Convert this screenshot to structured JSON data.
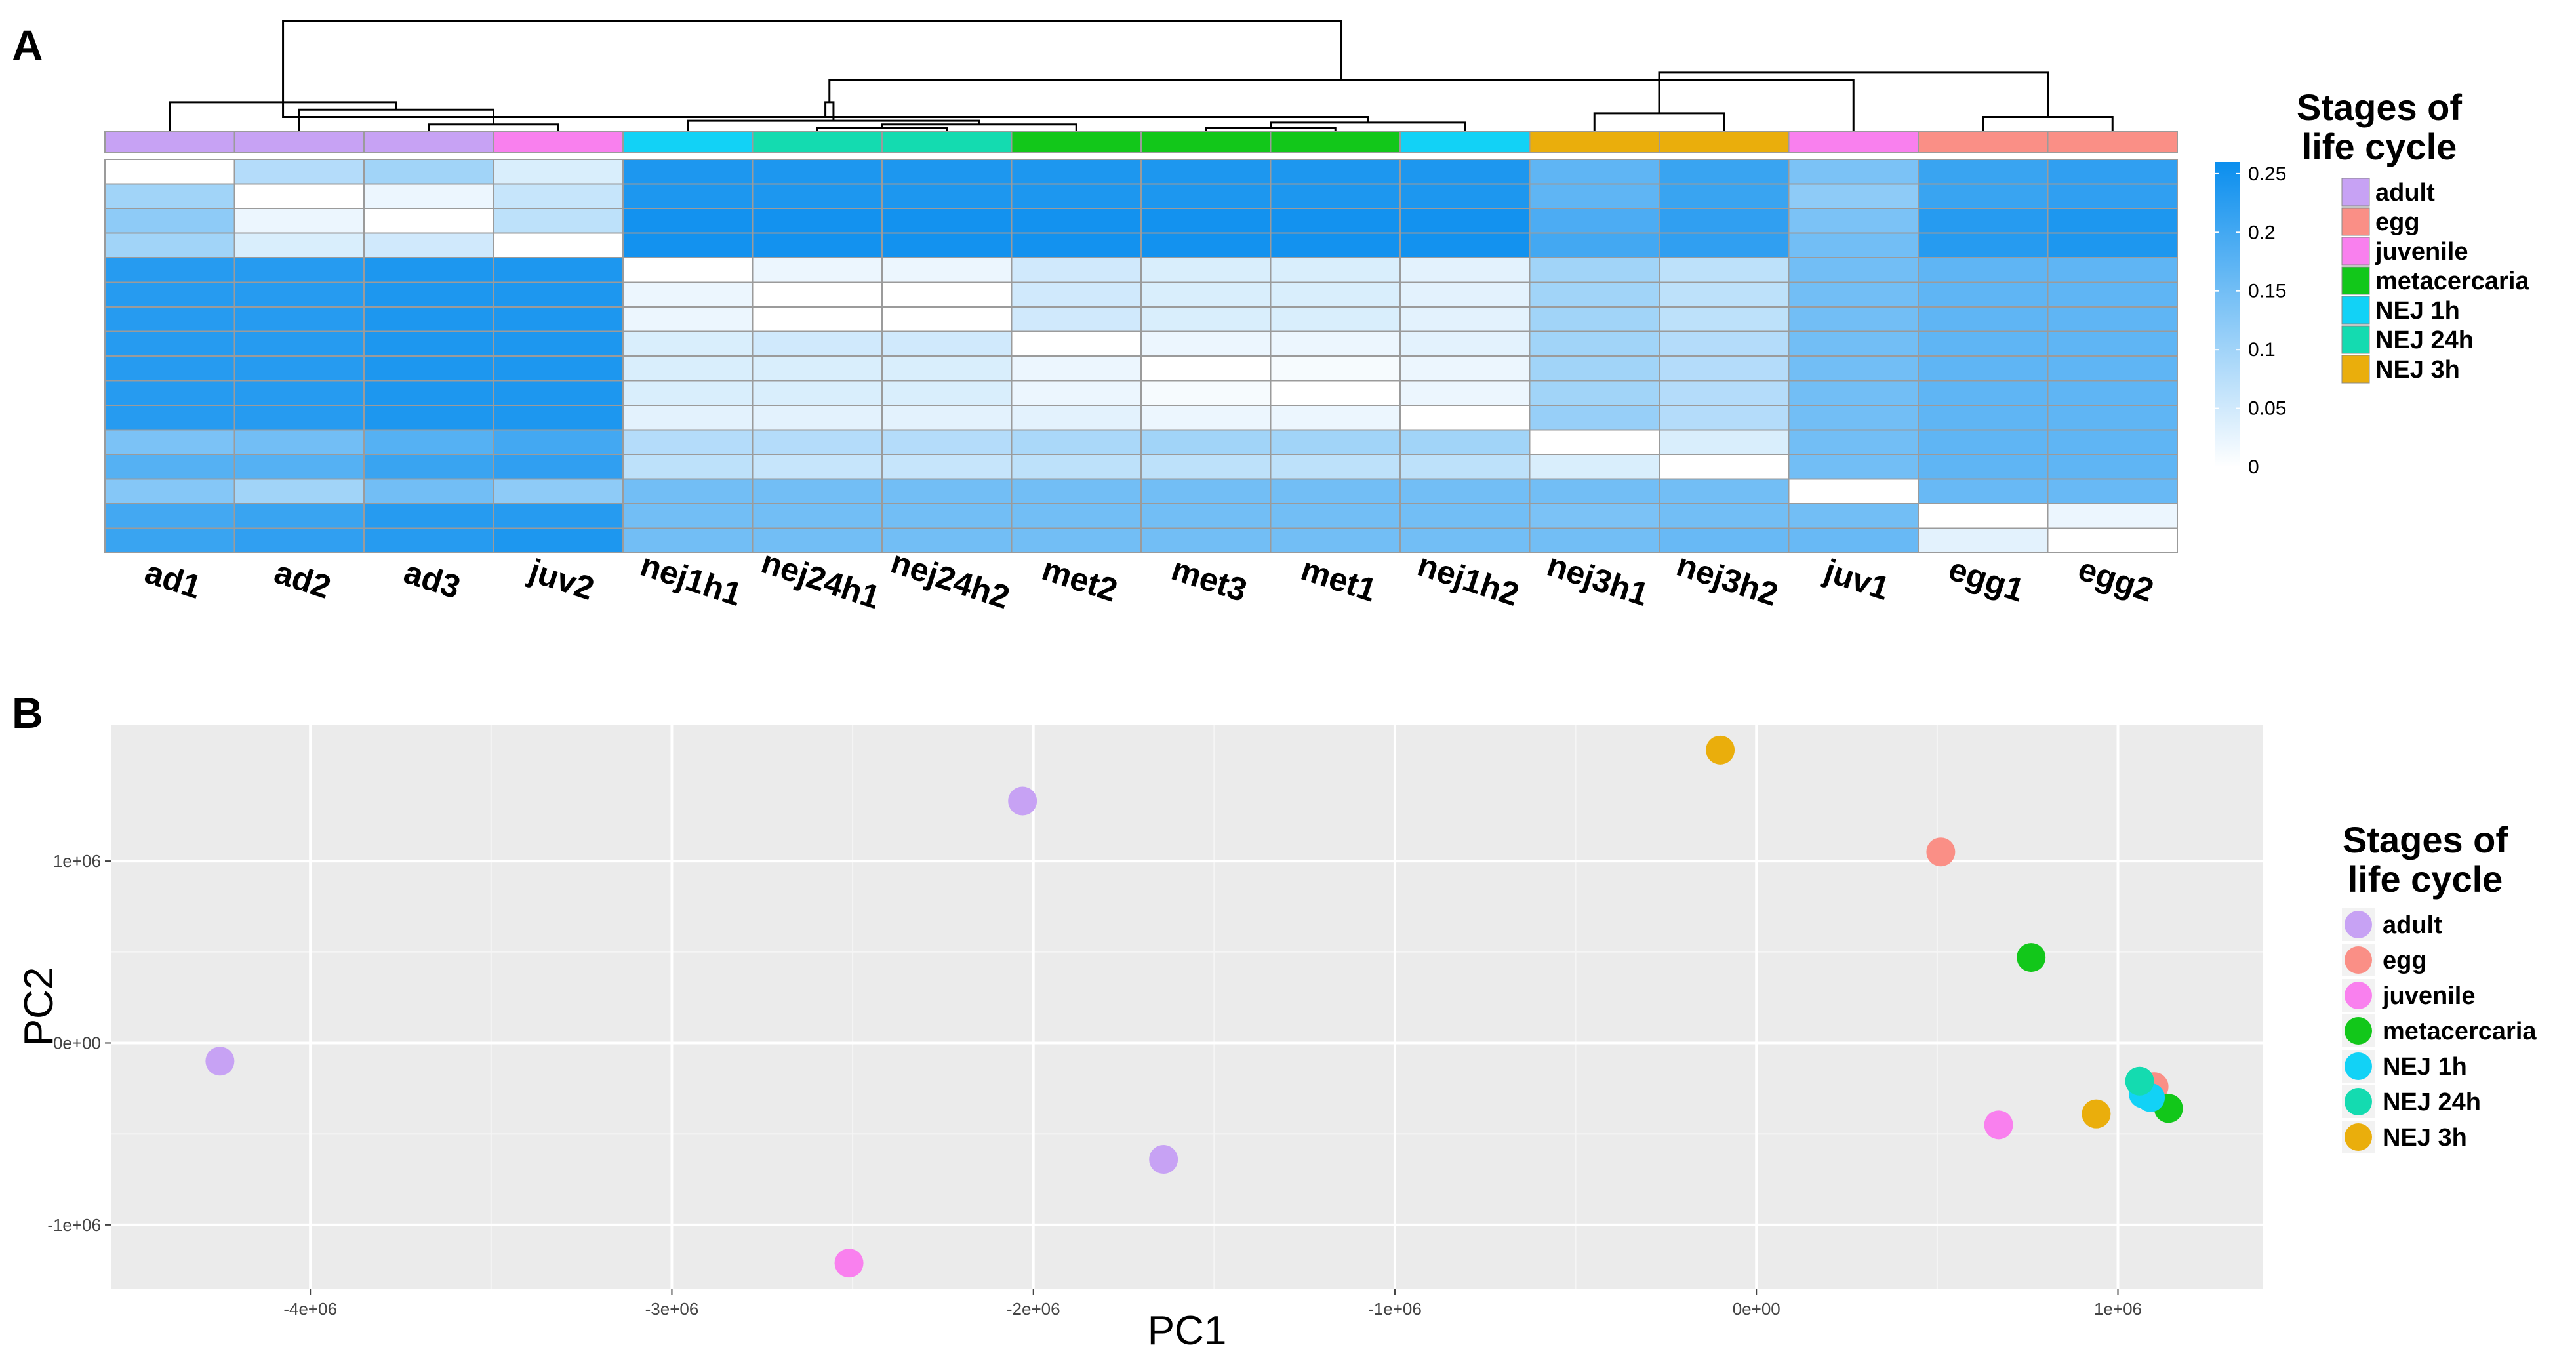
{
  "panel_a_label": "A",
  "panel_b_label": "B",
  "colors": {
    "adult": "#C7A2F4",
    "egg": "#FA8F86",
    "juvenile": "#F980EE",
    "metacercaria": "#12C71A",
    "NEJ 1h": "#12D2F6",
    "NEJ 24h": "#14DBB0",
    "NEJ 3h": "#EAAE0C"
  },
  "chart_data": [
    {
      "type": "heatmap",
      "columns": [
        "ad1",
        "ad2",
        "ad3",
        "juv2",
        "nej1h1",
        "nej24h1",
        "nej24h2",
        "met2",
        "met3",
        "met1",
        "nej1h2",
        "nej3h1",
        "nej3h2",
        "juv1",
        "egg1",
        "egg2"
      ],
      "column_stages": [
        "adult",
        "adult",
        "adult",
        "juvenile",
        "NEJ 1h",
        "NEJ 24h",
        "NEJ 24h",
        "metacercaria",
        "metacercaria",
        "metacercaria",
        "NEJ 1h",
        "NEJ 3h",
        "NEJ 3h",
        "juvenile",
        "egg",
        "egg"
      ],
      "matrix": [
        [
          0.0,
          0.08,
          0.1,
          0.04,
          0.24,
          0.24,
          0.24,
          0.24,
          0.24,
          0.24,
          0.24,
          0.17,
          0.21,
          0.14,
          0.21,
          0.22
        ],
        [
          0.1,
          0.0,
          0.02,
          0.06,
          0.24,
          0.24,
          0.24,
          0.24,
          0.24,
          0.24,
          0.24,
          0.17,
          0.21,
          0.12,
          0.21,
          0.22
        ],
        [
          0.12,
          0.02,
          0.0,
          0.07,
          0.25,
          0.25,
          0.25,
          0.25,
          0.25,
          0.25,
          0.25,
          0.19,
          0.22,
          0.14,
          0.23,
          0.24
        ],
        [
          0.1,
          0.04,
          0.05,
          0.0,
          0.25,
          0.25,
          0.25,
          0.25,
          0.25,
          0.25,
          0.25,
          0.2,
          0.22,
          0.15,
          0.23,
          0.24
        ],
        [
          0.23,
          0.23,
          0.24,
          0.24,
          0.0,
          0.02,
          0.02,
          0.05,
          0.04,
          0.04,
          0.03,
          0.1,
          0.07,
          0.15,
          0.17,
          0.17
        ],
        [
          0.23,
          0.23,
          0.24,
          0.24,
          0.02,
          0.0,
          0.0,
          0.05,
          0.04,
          0.04,
          0.03,
          0.1,
          0.07,
          0.15,
          0.17,
          0.17
        ],
        [
          0.23,
          0.23,
          0.24,
          0.24,
          0.02,
          0.0,
          0.0,
          0.05,
          0.04,
          0.04,
          0.03,
          0.1,
          0.07,
          0.15,
          0.17,
          0.17
        ],
        [
          0.23,
          0.23,
          0.24,
          0.24,
          0.04,
          0.05,
          0.05,
          0.0,
          0.02,
          0.02,
          0.03,
          0.1,
          0.08,
          0.15,
          0.17,
          0.17
        ],
        [
          0.23,
          0.23,
          0.24,
          0.24,
          0.04,
          0.04,
          0.04,
          0.02,
          0.0,
          0.01,
          0.02,
          0.1,
          0.08,
          0.15,
          0.17,
          0.17
        ],
        [
          0.23,
          0.23,
          0.24,
          0.24,
          0.04,
          0.04,
          0.04,
          0.02,
          0.01,
          0.0,
          0.02,
          0.1,
          0.08,
          0.15,
          0.17,
          0.17
        ],
        [
          0.23,
          0.23,
          0.24,
          0.24,
          0.03,
          0.03,
          0.03,
          0.03,
          0.02,
          0.02,
          0.0,
          0.11,
          0.08,
          0.15,
          0.17,
          0.17
        ],
        [
          0.14,
          0.15,
          0.18,
          0.2,
          0.08,
          0.08,
          0.08,
          0.09,
          0.1,
          0.1,
          0.1,
          0.0,
          0.04,
          0.15,
          0.17,
          0.17
        ],
        [
          0.18,
          0.18,
          0.21,
          0.22,
          0.07,
          0.06,
          0.06,
          0.07,
          0.07,
          0.07,
          0.07,
          0.04,
          0.0,
          0.15,
          0.17,
          0.17
        ],
        [
          0.13,
          0.1,
          0.15,
          0.12,
          0.15,
          0.15,
          0.15,
          0.15,
          0.15,
          0.15,
          0.15,
          0.15,
          0.15,
          0.0,
          0.16,
          0.16
        ],
        [
          0.2,
          0.21,
          0.23,
          0.23,
          0.15,
          0.15,
          0.15,
          0.15,
          0.15,
          0.15,
          0.15,
          0.14,
          0.15,
          0.15,
          0.0,
          0.02
        ],
        [
          0.21,
          0.22,
          0.23,
          0.24,
          0.15,
          0.15,
          0.15,
          0.15,
          0.15,
          0.15,
          0.15,
          0.15,
          0.16,
          0.16,
          0.03,
          0.0
        ]
      ],
      "scale_ticks": [
        "0",
        "0.05",
        "0.1",
        "0.15",
        "0.2",
        "0.25"
      ],
      "scale_range": [
        0,
        0.26
      ],
      "dendrogram_merges": [
        [
          3,
          4,
          0.02
        ],
        [
          2,
          17,
          0.06
        ],
        [
          1,
          18,
          0.08
        ],
        [
          6,
          7,
          0.01
        ],
        [
          9,
          10,
          0.01
        ],
        [
          8,
          20,
          0.02
        ],
        [
          11,
          21,
          0.025
        ],
        [
          5,
          22,
          0.03
        ],
        [
          19,
          23,
          0.04
        ],
        [
          12,
          13,
          0.05
        ],
        [
          24,
          25,
          0.08
        ],
        [
          15,
          16,
          0.04
        ],
        [
          14,
          27,
          0.14
        ],
        [
          26,
          28,
          0.16
        ],
        [
          19,
          29,
          0.3
        ]
      ],
      "legend": {
        "title_line1": "Stages of",
        "title_line2": "life cycle",
        "items": [
          "adult",
          "egg",
          "juvenile",
          "metacercaria",
          "NEJ 1h",
          "NEJ 24h",
          "NEJ 3h"
        ]
      }
    },
    {
      "type": "scatter",
      "xlabel": "PC1",
      "ylabel": "PC2",
      "xlim": [
        -4550000,
        1400000
      ],
      "ylim": [
        -1350000,
        1750000
      ],
      "x_ticks": [
        -4000000,
        -3000000,
        -2000000,
        -1000000,
        0,
        1000000
      ],
      "x_tick_labels": [
        "-4e+06",
        "-3e+06",
        "-2e+06",
        "-1e+06",
        "0e+00",
        "1e+06"
      ],
      "y_ticks": [
        -1000000,
        0,
        1000000
      ],
      "y_tick_labels": [
        "-1e+06",
        "0e+00",
        "1e+06"
      ],
      "grid": true,
      "points": [
        {
          "x": -4250000,
          "y": -100000,
          "group": "adult"
        },
        {
          "x": -2030000,
          "y": 1330000,
          "group": "adult"
        },
        {
          "x": -1640000,
          "y": -640000,
          "group": "adult"
        },
        {
          "x": -2510000,
          "y": -1210000,
          "group": "juvenile"
        },
        {
          "x": 670000,
          "y": -450000,
          "group": "juvenile"
        },
        {
          "x": -100000,
          "y": 1610000,
          "group": "NEJ 3h"
        },
        {
          "x": 940000,
          "y": -390000,
          "group": "NEJ 3h"
        },
        {
          "x": 510000,
          "y": 1050000,
          "group": "egg"
        },
        {
          "x": 1100000,
          "y": -240000,
          "group": "egg"
        },
        {
          "x": 760000,
          "y": 470000,
          "group": "metacercaria"
        },
        {
          "x": 1140000,
          "y": -360000,
          "group": "metacercaria"
        },
        {
          "x": 1090000,
          "y": -300000,
          "group": "NEJ 1h"
        },
        {
          "x": 1070000,
          "y": -280000,
          "group": "NEJ 1h"
        },
        {
          "x": 1060000,
          "y": -210000,
          "group": "NEJ 24h"
        }
      ],
      "legend": {
        "title_line1": "Stages of",
        "title_line2": "life cycle",
        "items": [
          "adult",
          "egg",
          "juvenile",
          "metacercaria",
          "NEJ 1h",
          "NEJ 24h",
          "NEJ 3h"
        ]
      }
    }
  ]
}
